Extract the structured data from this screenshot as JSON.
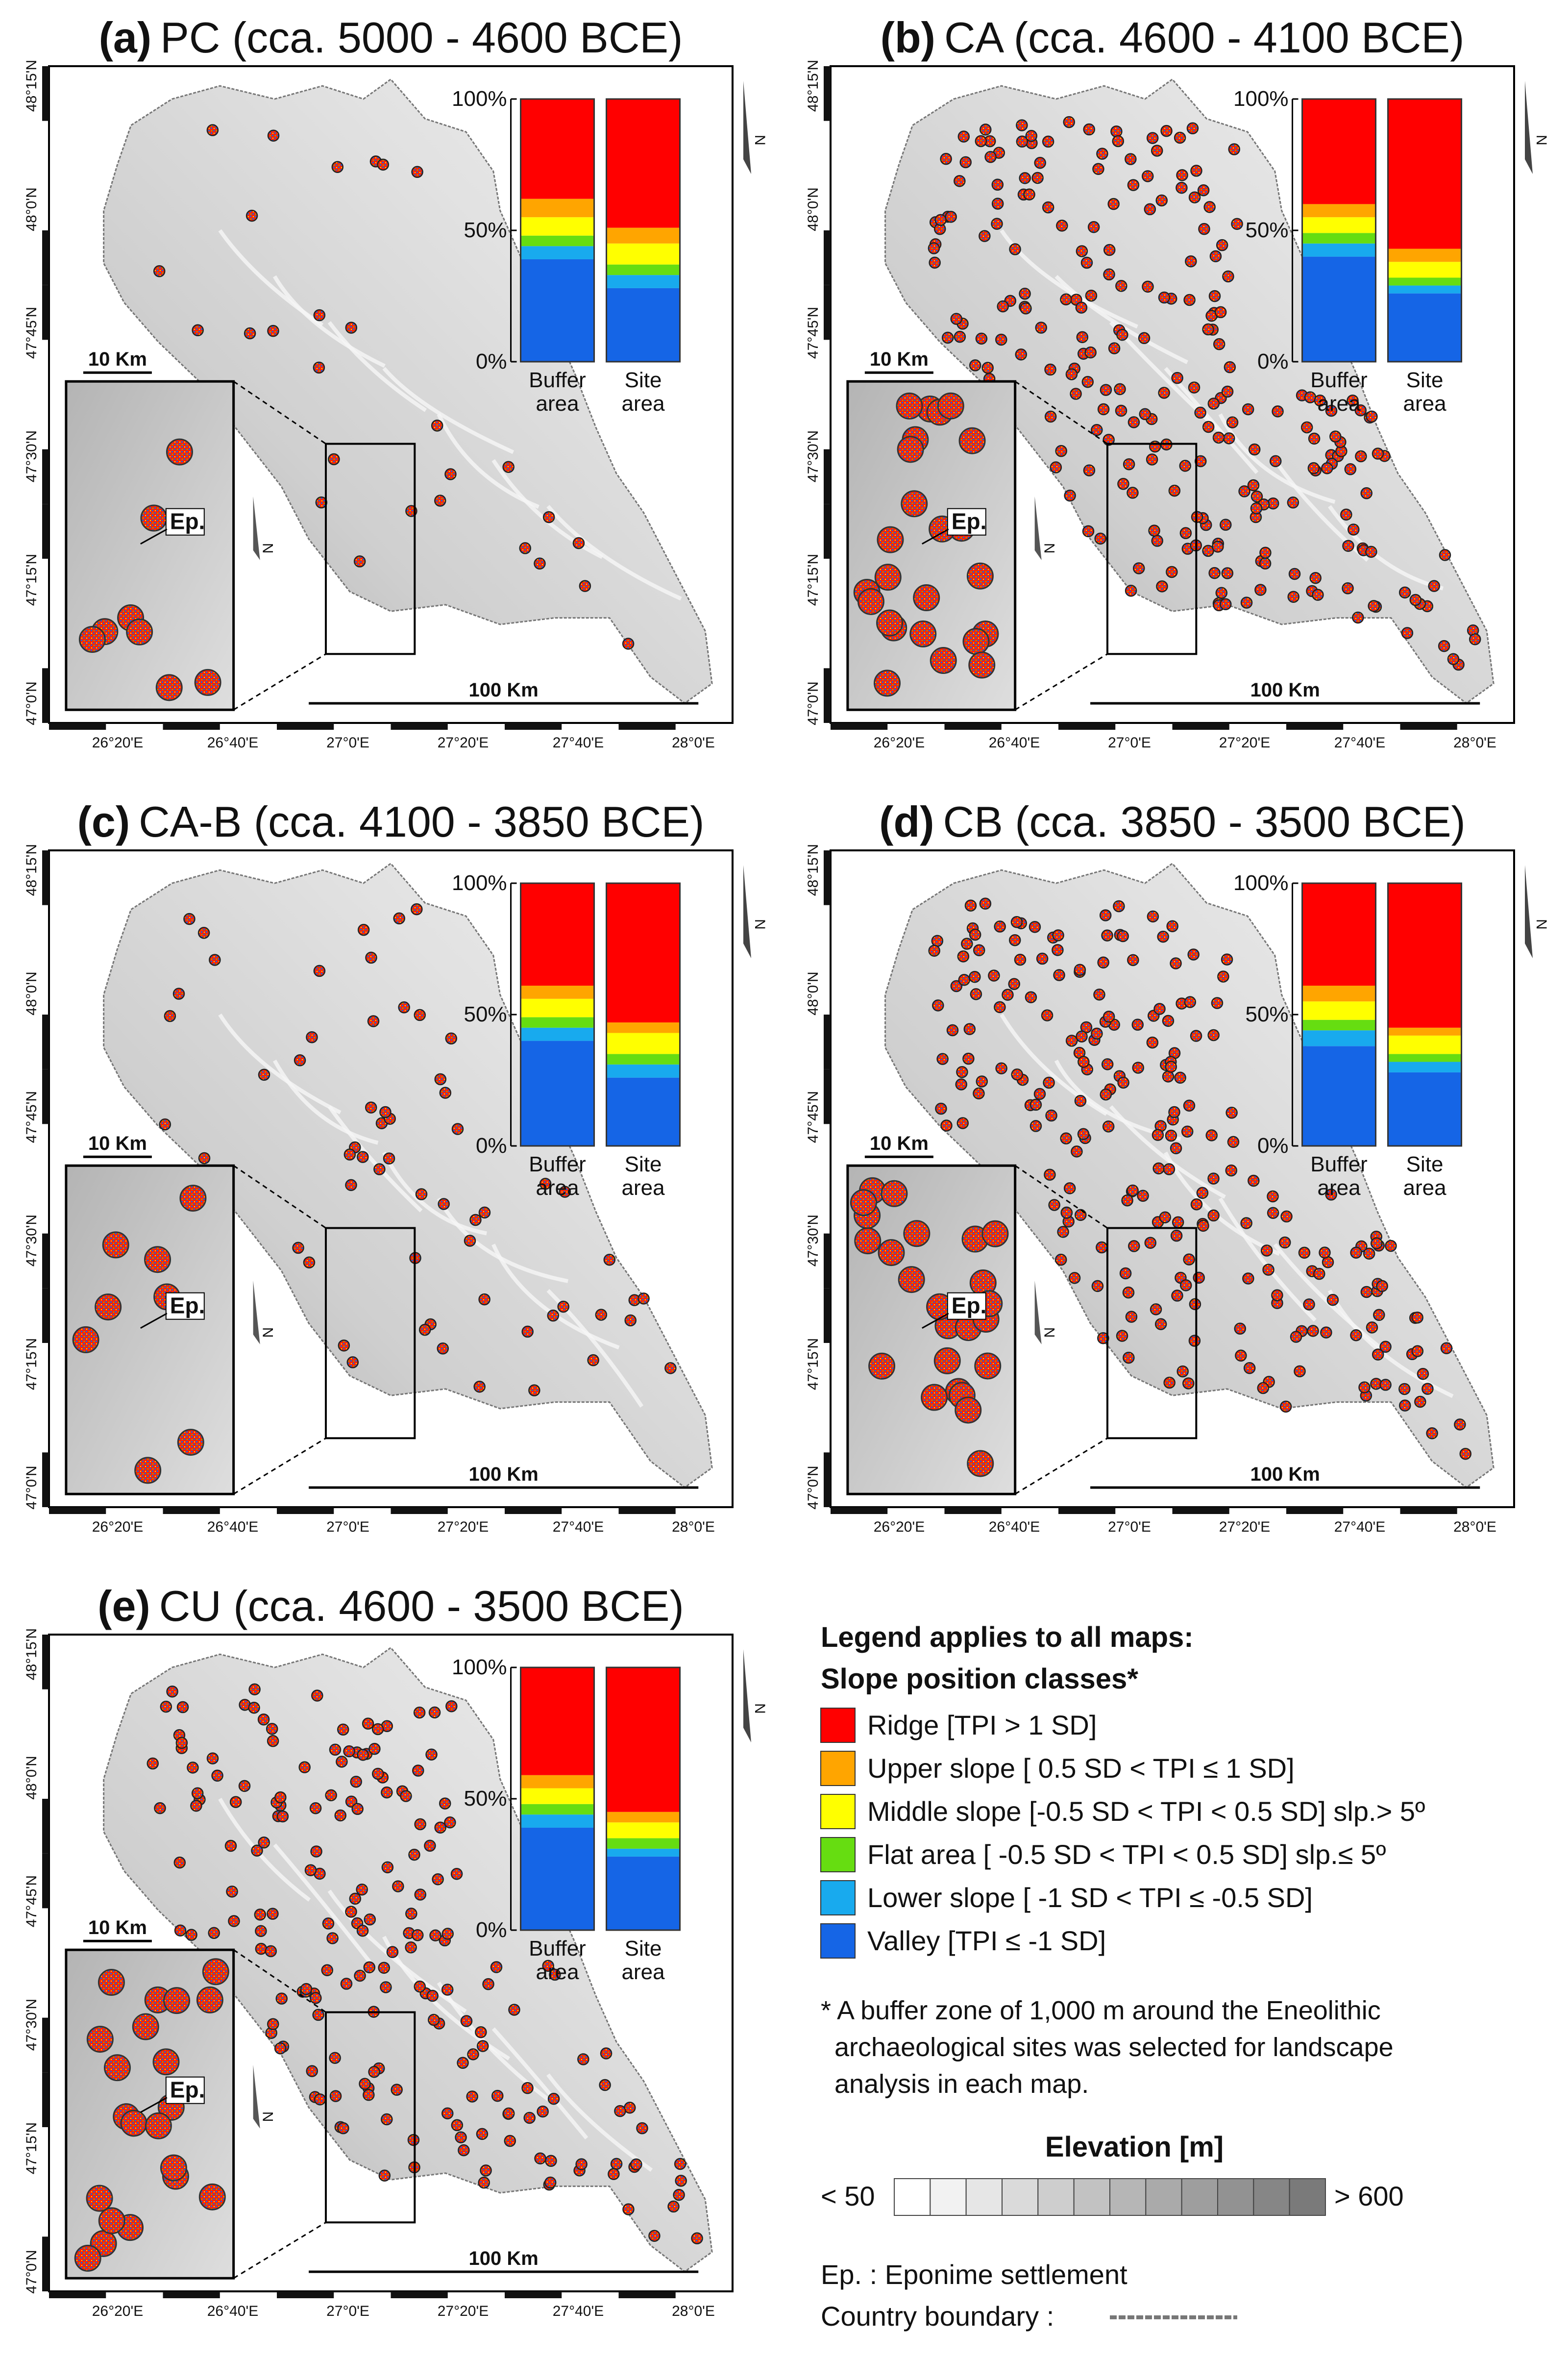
{
  "colors": {
    "ridge": "#ff0000",
    "upper": "#ffa500",
    "middle": "#ffff00",
    "flat": "#66dd11",
    "lower": "#18aaee",
    "valley": "#1565e6"
  },
  "shared_labels": {
    "lat_ticks": [
      "48°15'N",
      "48°0'N",
      "47°45'N",
      "47°30'N",
      "47°15'N",
      "47°0'N"
    ],
    "lon_ticks": [
      "26°20'E",
      "26°40'E",
      "27°0'E",
      "27°20'E",
      "27°40'E",
      "28°0'E"
    ],
    "bar_axis_ticks": [
      "100%",
      "50%",
      "0%"
    ],
    "bar_categories": [
      "Buffer area",
      "Site area"
    ],
    "bar_category_lines": [
      [
        "Buffer",
        "area"
      ],
      [
        "Site",
        "area"
      ]
    ],
    "scale_main": "100 Km",
    "scale_inset": "10 Km",
    "eponym_tag": "Ep.",
    "north": "N"
  },
  "panels": [
    {
      "title": "(a) PC (cca. 5000 - 4600 BCE)",
      "letter": "(a)",
      "name": "PC (cca. 5000 - 4600 BCE)",
      "site_density": 28
    },
    {
      "title": "(b) CA (cca. 4600 - 4100 BCE)",
      "letter": "(b)",
      "name": "CA (cca. 4600 - 4100 BCE)",
      "site_density": 240
    },
    {
      "title": "(c) CA-B (cca. 4100 - 3850 BCE)",
      "letter": "(c)",
      "name": "CA-B (cca. 4100 - 3850 BCE)",
      "site_density": 60
    },
    {
      "title": "(d) CB (cca. 3850 - 3500 BCE)",
      "letter": "(d)",
      "name": "CB (cca. 3850 - 3500 BCE)",
      "site_density": 230
    },
    {
      "title": "(e) CU (cca. 4600 - 3500 BCE)",
      "letter": "(e)",
      "name": "CU (cca. 4600 - 3500 BCE)",
      "site_density": 190
    }
  ],
  "chart_data": [
    {
      "type": "bar",
      "title": "(a) PC (cca. 5000 - 4600 BCE)",
      "stacked": true,
      "ylim": [
        0,
        100
      ],
      "yticks": [
        "0%",
        "50%",
        "100%"
      ],
      "categories": [
        "Buffer area",
        "Site area"
      ],
      "series": [
        {
          "name": "Valley [TPI ≤ -1 SD]",
          "values": [
            39,
            28
          ]
        },
        {
          "name": "Lower slope [ -1 SD < TPI ≤ -0.5 SD]",
          "values": [
            5,
            5
          ]
        },
        {
          "name": "Flat area [ -0.5 SD < TPI < 0.5 SD] slp.≤ 5º",
          "values": [
            4,
            4
          ]
        },
        {
          "name": "Middle slope [-0.5 SD < TPI < 0.5 SD] slp.> 5º",
          "values": [
            7,
            8
          ]
        },
        {
          "name": "Upper slope [ 0.5 SD < TPI ≤ 1 SD]",
          "values": [
            7,
            6
          ]
        },
        {
          "name": "Ridge [TPI > 1 SD]",
          "values": [
            38,
            49
          ]
        }
      ]
    },
    {
      "type": "bar",
      "title": "(b) CA (cca. 4600 - 4100 BCE)",
      "stacked": true,
      "ylim": [
        0,
        100
      ],
      "yticks": [
        "0%",
        "50%",
        "100%"
      ],
      "categories": [
        "Buffer area",
        "Site area"
      ],
      "series": [
        {
          "name": "Valley [TPI ≤ -1 SD]",
          "values": [
            40,
            26
          ]
        },
        {
          "name": "Lower slope [ -1 SD < TPI ≤ -0.5 SD]",
          "values": [
            5,
            3
          ]
        },
        {
          "name": "Flat area [ -0.5 SD < TPI < 0.5 SD] slp.≤ 5º",
          "values": [
            4,
            3
          ]
        },
        {
          "name": "Middle slope [-0.5 SD < TPI < 0.5 SD] slp.> 5º",
          "values": [
            6,
            6
          ]
        },
        {
          "name": "Upper slope [ 0.5 SD < TPI ≤ 1 SD]",
          "values": [
            5,
            5
          ]
        },
        {
          "name": "Ridge [TPI > 1 SD]",
          "values": [
            40,
            57
          ]
        }
      ]
    },
    {
      "type": "bar",
      "title": "(c) CA-B (cca. 4100 - 3850 BCE)",
      "stacked": true,
      "ylim": [
        0,
        100
      ],
      "yticks": [
        "0%",
        "50%",
        "100%"
      ],
      "categories": [
        "Buffer area",
        "Site area"
      ],
      "series": [
        {
          "name": "Valley [TPI ≤ -1 SD]",
          "values": [
            40,
            26
          ]
        },
        {
          "name": "Lower slope [ -1 SD < TPI ≤ -0.5 SD]",
          "values": [
            5,
            5
          ]
        },
        {
          "name": "Flat area [ -0.5 SD < TPI < 0.5 SD] slp.≤ 5º",
          "values": [
            4,
            4
          ]
        },
        {
          "name": "Middle slope [-0.5 SD < TPI < 0.5 SD] slp.> 5º",
          "values": [
            7,
            8
          ]
        },
        {
          "name": "Upper slope [ 0.5 SD < TPI ≤ 1 SD]",
          "values": [
            5,
            4
          ]
        },
        {
          "name": "Ridge [TPI > 1 SD]",
          "values": [
            39,
            53
          ]
        }
      ]
    },
    {
      "type": "bar",
      "title": "(d) CB (cca. 3850 - 3500 BCE)",
      "stacked": true,
      "ylim": [
        0,
        100
      ],
      "yticks": [
        "0%",
        "50%",
        "100%"
      ],
      "categories": [
        "Buffer area",
        "Site area"
      ],
      "series": [
        {
          "name": "Valley [TPI ≤ -1 SD]",
          "values": [
            38,
            28
          ]
        },
        {
          "name": "Lower slope [ -1 SD < TPI ≤ -0.5 SD]",
          "values": [
            6,
            4
          ]
        },
        {
          "name": "Flat area [ -0.5 SD < TPI < 0.5 SD] slp.≤ 5º",
          "values": [
            4,
            3
          ]
        },
        {
          "name": "Middle slope [-0.5 SD < TPI < 0.5 SD] slp.> 5º",
          "values": [
            7,
            7
          ]
        },
        {
          "name": "Upper slope [ 0.5 SD < TPI ≤ 1 SD]",
          "values": [
            6,
            3
          ]
        },
        {
          "name": "Ridge [TPI > 1 SD]",
          "values": [
            39,
            55
          ]
        }
      ]
    },
    {
      "type": "bar",
      "title": "(e) CU (cca. 4600 - 3500 BCE)",
      "stacked": true,
      "ylim": [
        0,
        100
      ],
      "yticks": [
        "0%",
        "50%",
        "100%"
      ],
      "categories": [
        "Buffer area",
        "Site area"
      ],
      "series": [
        {
          "name": "Valley [TPI ≤ -1 SD]",
          "values": [
            39,
            28
          ]
        },
        {
          "name": "Lower slope [ -1 SD < TPI ≤ -0.5 SD]",
          "values": [
            5,
            3
          ]
        },
        {
          "name": "Flat area [ -0.5 SD < TPI < 0.5 SD] slp.≤ 5º",
          "values": [
            4,
            4
          ]
        },
        {
          "name": "Middle slope [-0.5 SD < TPI < 0.5 SD] slp.> 5º",
          "values": [
            6,
            6
          ]
        },
        {
          "name": "Upper slope [ 0.5 SD < TPI ≤ 1 SD]",
          "values": [
            5,
            4
          ]
        },
        {
          "name": "Ridge [TPI > 1 SD]",
          "values": [
            41,
            55
          ]
        }
      ]
    }
  ],
  "legend": {
    "heading": "Legend applies to all maps:",
    "subheading": "Slope position classes*",
    "items": [
      {
        "key": "ridge",
        "label": "Ridge [TPI > 1 SD]"
      },
      {
        "key": "upper",
        "label": "Upper slope  [ 0.5 SD < TPI ≤ 1 SD]"
      },
      {
        "key": "middle",
        "label": "Middle slope [-0.5 SD < TPI < 0.5 SD] slp.> 5º"
      },
      {
        "key": "flat",
        "label": "Flat area [ -0.5 SD < TPI < 0.5 SD] slp.≤ 5º"
      },
      {
        "key": "lower",
        "label": "Lower slope [ -1 SD < TPI ≤ -0.5 SD]"
      },
      {
        "key": "valley",
        "label": "Valley [TPI ≤ -1 SD]"
      }
    ],
    "footnote_lines": [
      "* A buffer zone of 1,000 m around the Eneolithic",
      "archaeological sites was selected for landscape",
      "analysis in each map."
    ],
    "elevation_title": "Elevation [m]",
    "elevation_min": "< 50",
    "elevation_max": "> 600",
    "elevation_steps": [
      "#ffffff",
      "#f2f2f2",
      "#e6e6e6",
      "#dadada",
      "#cecece",
      "#c2c2c2",
      "#b6b6b6",
      "#aaaaaa",
      "#9e9e9e",
      "#929292",
      "#868686",
      "#7a7a7a"
    ],
    "eponym_note": "Ep. :  Eponime settlement",
    "boundary_note": "Country boundary :"
  }
}
